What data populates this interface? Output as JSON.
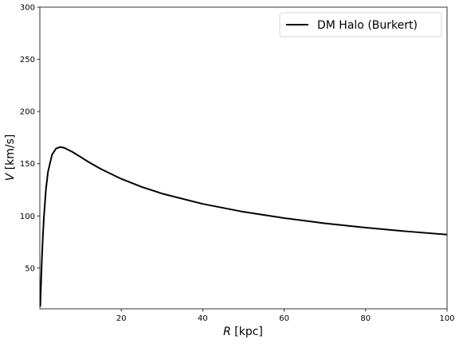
{
  "chart_data": {
    "type": "line",
    "xlabel": {
      "symbol": "R",
      "unit": "[kpc]"
    },
    "ylabel": {
      "symbol": "V",
      "unit": "[km/s]"
    },
    "x": [
      0.1,
      0.25,
      0.5,
      0.75,
      1,
      1.5,
      2,
      3,
      4,
      5,
      6,
      8,
      10,
      12,
      15,
      20,
      25,
      30,
      40,
      50,
      60,
      70,
      80,
      90,
      100
    ],
    "series": [
      {
        "name": "DM Halo (Burkert)",
        "color": "#000000",
        "values": [
          13.0,
          31.2,
          58.1,
          80.6,
          99.0,
          125.6,
          142.2,
          158.7,
          164.6,
          166.0,
          165.2,
          161.3,
          156.5,
          151.6,
          144.9,
          135.5,
          127.8,
          121.4,
          111.5,
          103.9,
          97.9,
          92.9,
          88.8,
          85.2,
          82.1
        ]
      }
    ],
    "xlim": [
      0,
      100
    ],
    "ylim": [
      11,
      300
    ],
    "xticks": [
      20,
      40,
      60,
      80,
      100
    ],
    "yticks": [
      50,
      100,
      150,
      200,
      250,
      300
    ],
    "legend": "upper right"
  }
}
